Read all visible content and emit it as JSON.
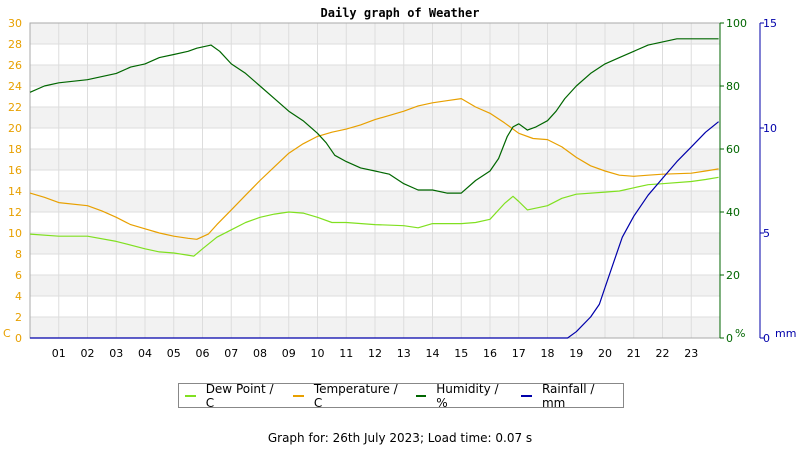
{
  "chart_data": {
    "type": "line",
    "title": "Daily graph of Weather",
    "x_tick_labels": [
      "01",
      "02",
      "03",
      "04",
      "05",
      "06",
      "07",
      "08",
      "09",
      "10",
      "11",
      "12",
      "13",
      "14",
      "15",
      "16",
      "17",
      "18",
      "19",
      "20",
      "21",
      "22",
      "23"
    ],
    "x_range_hours": [
      0,
      24
    ],
    "left_axis": {
      "unit": "C",
      "range": [
        0,
        30
      ],
      "ticks": [
        0,
        2,
        4,
        6,
        8,
        10,
        12,
        14,
        16,
        18,
        20,
        22,
        24,
        26,
        28,
        30
      ],
      "color": "#e8a000"
    },
    "humidity_axis": {
      "unit": "%",
      "range": [
        0,
        100
      ],
      "ticks": [
        0,
        20,
        40,
        60,
        80,
        100
      ],
      "color": "#006600"
    },
    "rain_axis": {
      "unit": "mm",
      "range": [
        0,
        15
      ],
      "ticks": [
        0,
        5,
        10,
        15
      ],
      "color": "#0000aa"
    },
    "grid": true,
    "legend_position": "bottom",
    "series": [
      {
        "name": "Dew Point / C",
        "color": "#80e020",
        "axis": "left",
        "points": [
          [
            0,
            9.9
          ],
          [
            1,
            9.7
          ],
          [
            2,
            9.7
          ],
          [
            3,
            9.2
          ],
          [
            4,
            8.5
          ],
          [
            4.5,
            8.2
          ],
          [
            5,
            8.1
          ],
          [
            5.7,
            7.8
          ],
          [
            6,
            8.5
          ],
          [
            6.5,
            9.6
          ],
          [
            7,
            10.3
          ],
          [
            7.5,
            11.0
          ],
          [
            8,
            11.5
          ],
          [
            8.5,
            11.8
          ],
          [
            9,
            12.0
          ],
          [
            9.5,
            11.9
          ],
          [
            10,
            11.5
          ],
          [
            10.5,
            11.0
          ],
          [
            11,
            11.0
          ],
          [
            12,
            10.8
          ],
          [
            13,
            10.7
          ],
          [
            13.5,
            10.5
          ],
          [
            14,
            10.9
          ],
          [
            15,
            10.9
          ],
          [
            15.5,
            11.0
          ],
          [
            16,
            11.3
          ],
          [
            16.5,
            12.8
          ],
          [
            16.8,
            13.5
          ],
          [
            17,
            13.0
          ],
          [
            17.3,
            12.2
          ],
          [
            18,
            12.6
          ],
          [
            18.5,
            13.3
          ],
          [
            19,
            13.7
          ],
          [
            20,
            13.9
          ],
          [
            20.5,
            14.0
          ],
          [
            21,
            14.3
          ],
          [
            21.5,
            14.6
          ],
          [
            22,
            14.7
          ],
          [
            23,
            14.9
          ],
          [
            23.5,
            15.1
          ],
          [
            23.95,
            15.3
          ]
        ]
      },
      {
        "name": "Temperature / C",
        "color": "#e8a000",
        "axis": "left",
        "points": [
          [
            0,
            13.8
          ],
          [
            0.5,
            13.4
          ],
          [
            1,
            12.9
          ],
          [
            2,
            12.6
          ],
          [
            2.5,
            12.1
          ],
          [
            3,
            11.5
          ],
          [
            3.5,
            10.8
          ],
          [
            4,
            10.4
          ],
          [
            4.5,
            10.0
          ],
          [
            5,
            9.7
          ],
          [
            5.5,
            9.5
          ],
          [
            5.8,
            9.4
          ],
          [
            6.2,
            9.9
          ],
          [
            6.5,
            10.8
          ],
          [
            7,
            12.2
          ],
          [
            7.5,
            13.6
          ],
          [
            8,
            15.0
          ],
          [
            8.5,
            16.3
          ],
          [
            9,
            17.6
          ],
          [
            9.5,
            18.5
          ],
          [
            10,
            19.2
          ],
          [
            10.5,
            19.6
          ],
          [
            11,
            19.9
          ],
          [
            11.5,
            20.3
          ],
          [
            12,
            20.8
          ],
          [
            12.5,
            21.2
          ],
          [
            13,
            21.6
          ],
          [
            13.5,
            22.1
          ],
          [
            14,
            22.4
          ],
          [
            14.5,
            22.6
          ],
          [
            15,
            22.8
          ],
          [
            15.5,
            22.0
          ],
          [
            16,
            21.4
          ],
          [
            16.5,
            20.5
          ],
          [
            17,
            19.5
          ],
          [
            17.5,
            19.0
          ],
          [
            18,
            18.9
          ],
          [
            18.5,
            18.2
          ],
          [
            19,
            17.2
          ],
          [
            19.5,
            16.4
          ],
          [
            20,
            15.9
          ],
          [
            20.5,
            15.5
          ],
          [
            21,
            15.4
          ],
          [
            21.5,
            15.5
          ],
          [
            22,
            15.6
          ],
          [
            23,
            15.7
          ],
          [
            23.5,
            15.9
          ],
          [
            23.95,
            16.1
          ]
        ]
      },
      {
        "name": "Humidity / %",
        "color": "#006600",
        "axis": "humidity",
        "points": [
          [
            0,
            78
          ],
          [
            0.5,
            80
          ],
          [
            1,
            81
          ],
          [
            2,
            82
          ],
          [
            3,
            84
          ],
          [
            3.5,
            86
          ],
          [
            4,
            87
          ],
          [
            4.5,
            89
          ],
          [
            5,
            90
          ],
          [
            5.5,
            91
          ],
          [
            5.8,
            92
          ],
          [
            6.3,
            93
          ],
          [
            6.6,
            91
          ],
          [
            7,
            87
          ],
          [
            7.5,
            84
          ],
          [
            8,
            80
          ],
          [
            8.5,
            76
          ],
          [
            9,
            72
          ],
          [
            9.5,
            69
          ],
          [
            10,
            65
          ],
          [
            10.3,
            62
          ],
          [
            10.6,
            58
          ],
          [
            11,
            56
          ],
          [
            11.5,
            54
          ],
          [
            12,
            53
          ],
          [
            12.5,
            52
          ],
          [
            13,
            49
          ],
          [
            13.5,
            47
          ],
          [
            14,
            47
          ],
          [
            14.5,
            46
          ],
          [
            15,
            46
          ],
          [
            15.5,
            50
          ],
          [
            16,
            53
          ],
          [
            16.3,
            57
          ],
          [
            16.6,
            64
          ],
          [
            16.8,
            67
          ],
          [
            17,
            68
          ],
          [
            17.3,
            66
          ],
          [
            17.6,
            67
          ],
          [
            18,
            69
          ],
          [
            18.3,
            72
          ],
          [
            18.6,
            76
          ],
          [
            19,
            80
          ],
          [
            19.5,
            84
          ],
          [
            20,
            87
          ],
          [
            20.5,
            89
          ],
          [
            21,
            91
          ],
          [
            21.5,
            93
          ],
          [
            22,
            94
          ],
          [
            22.5,
            95
          ],
          [
            23,
            95
          ],
          [
            23.95,
            95
          ]
        ]
      },
      {
        "name": "Rainfall / mm",
        "color": "#0000aa",
        "axis": "rain",
        "points": [
          [
            0,
            0
          ],
          [
            18.7,
            0
          ],
          [
            19,
            0.3
          ],
          [
            19.5,
            1.0
          ],
          [
            19.8,
            1.6
          ],
          [
            20,
            2.4
          ],
          [
            20.3,
            3.6
          ],
          [
            20.6,
            4.8
          ],
          [
            21,
            5.8
          ],
          [
            21.5,
            6.8
          ],
          [
            22,
            7.6
          ],
          [
            22.5,
            8.4
          ],
          [
            23,
            9.1
          ],
          [
            23.5,
            9.8
          ],
          [
            23.95,
            10.3
          ]
        ]
      }
    ]
  },
  "footer": {
    "text": "Graph for: 26th July 2023; Load time: 0.07 s"
  }
}
